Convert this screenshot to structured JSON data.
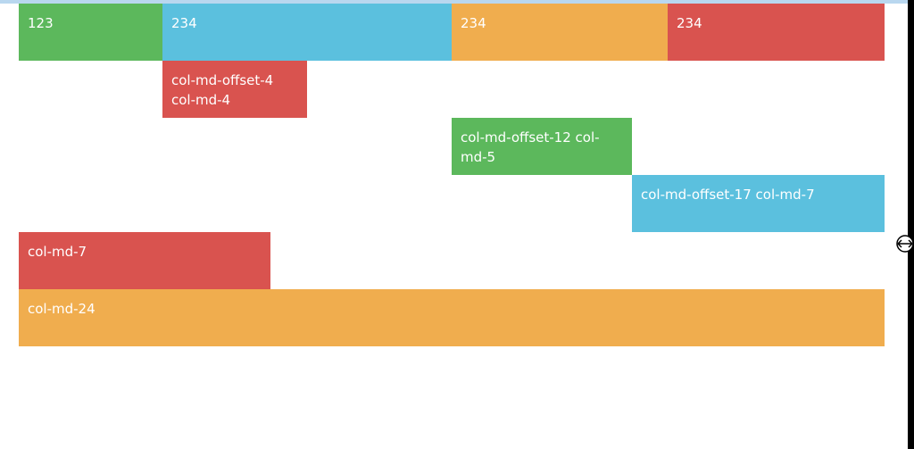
{
  "rows": {
    "row1": [
      "123",
      "234",
      "234",
      "234"
    ],
    "row2": "col-md-offset-4 col-md-4",
    "row3": "col-md-offset-12 col-md-5",
    "row4": "col-md-offset-17 col-md-7",
    "row5": "col-md-7",
    "row6": "col-md-24"
  },
  "colors": {
    "green": "#5cb85c",
    "blue": "#5bc0de",
    "orange": "#f0ad4e",
    "red": "#d9534f"
  },
  "cursor": "resize-cursor-icon"
}
